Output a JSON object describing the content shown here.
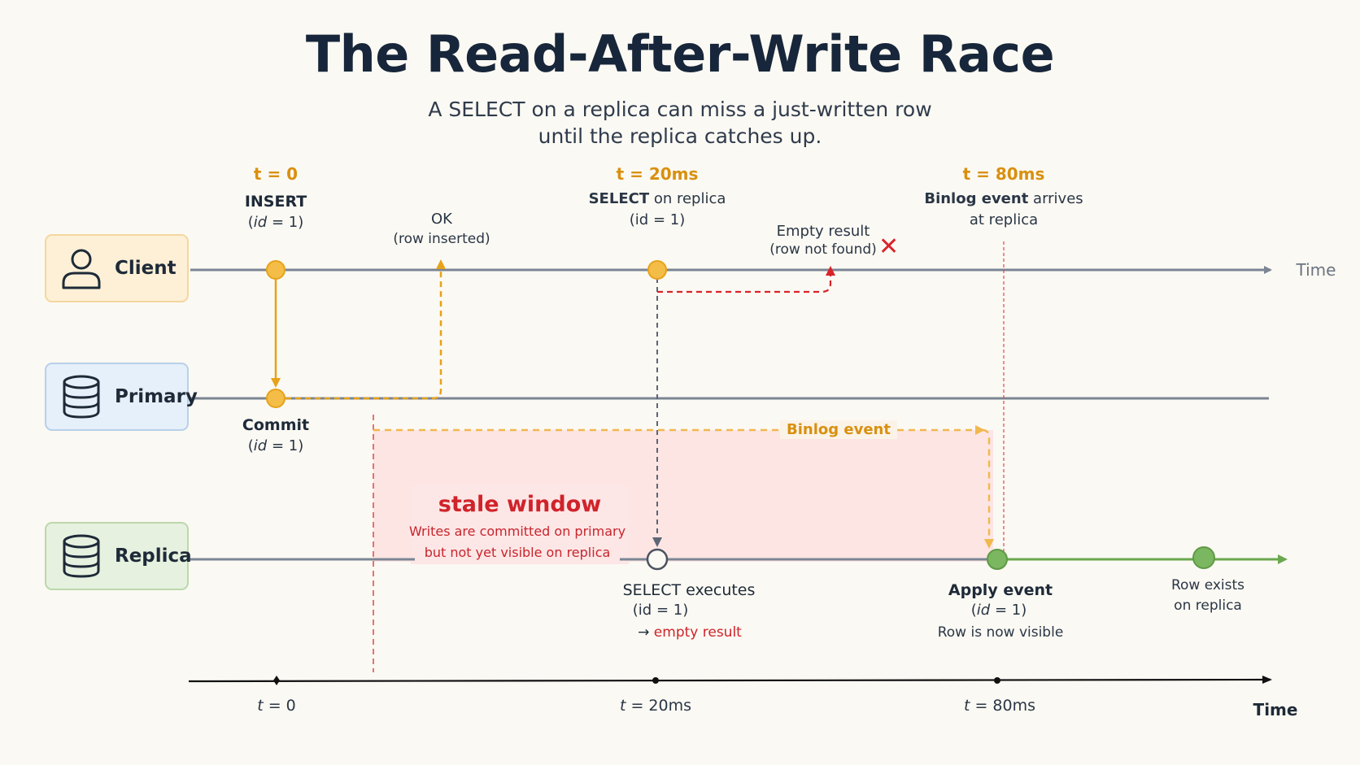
{
  "title": "The Read-After-Write Race",
  "subtitle": {
    "line1": "A SELECT on a replica can miss a just-written row",
    "line2": "until the replica catches up."
  },
  "lanes": {
    "client": "Client",
    "primary": "Primary",
    "replica": "Replica"
  },
  "time_label": "Time",
  "events": {
    "insert": {
      "time": "t = 0",
      "label": "INSERT",
      "param_open": "(",
      "param_italic": "id",
      "param_close": " = 1)"
    },
    "ok": {
      "label": "OK",
      "detail": "(row inserted)"
    },
    "select": {
      "time": "t = 20ms",
      "label_bold": "SELECT",
      "label_rest": " on replica",
      "param": "(id = 1)"
    },
    "empty": {
      "label": "Empty result",
      "detail": "(row not found)",
      "mark": "✕"
    },
    "binlog_arrives": {
      "time": "t = 80ms",
      "label_bold": "Binlog event",
      "label_rest": " arrives",
      "line2": "at replica"
    },
    "commit": {
      "label": "Commit",
      "param_open": "(",
      "param_italic": "id",
      "param_close": " = 1)"
    },
    "binlog_event": "Binlog event",
    "stale": {
      "title": "stale window",
      "line1": "Writes are committed on primary",
      "line2": "but not yet visible on replica"
    },
    "select_exec": {
      "label": "SELECT executes",
      "param": "(id = 1)",
      "arrow": "→",
      "result": "empty result"
    },
    "apply": {
      "label": "Apply event",
      "param_open": "(",
      "param_italic": "id",
      "param_close": " = 1)",
      "detail": "Row is now visible"
    },
    "row_exists": {
      "line1": "Row exists",
      "line2": "on replica"
    }
  },
  "axis": {
    "ticks": [
      {
        "italic": "t",
        "rest": " = 0"
      },
      {
        "italic": "t",
        "rest": " = 20ms"
      },
      {
        "italic": "t",
        "rest": " = 80ms"
      }
    ],
    "label": "Time"
  },
  "colors": {
    "orange": "#e7a21b",
    "red": "#d9232a",
    "green": "#6aa84f",
    "lane": "#7b8594",
    "stale_fill": "#fde2e2"
  }
}
